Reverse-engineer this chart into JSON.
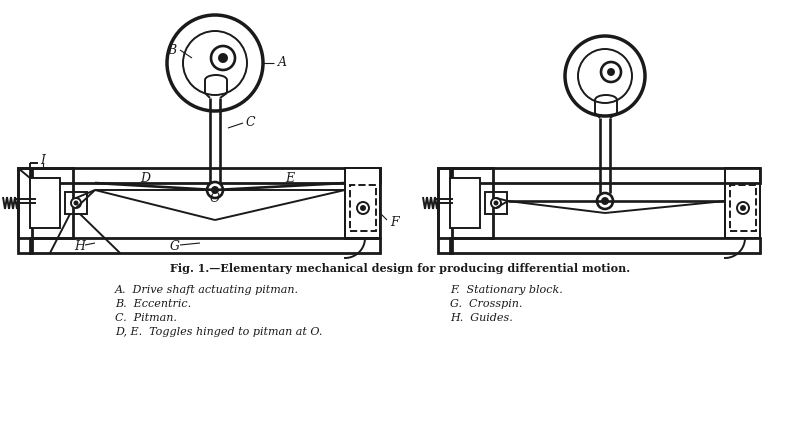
{
  "title": "Fig. 1.—Elementary mechanical design for producing differential motion.",
  "caption_left": [
    "A.  Drive shaft actuating pitman.",
    "B.  Eccentric.",
    "C.  Pitman.",
    "D, E.  Toggles hinged to pitman at O."
  ],
  "caption_right": [
    "F.  Stationary block.",
    "G.  Crosspin.",
    "H.  Guides."
  ],
  "bg_color": "#ffffff",
  "lc": "#1a1a1a"
}
